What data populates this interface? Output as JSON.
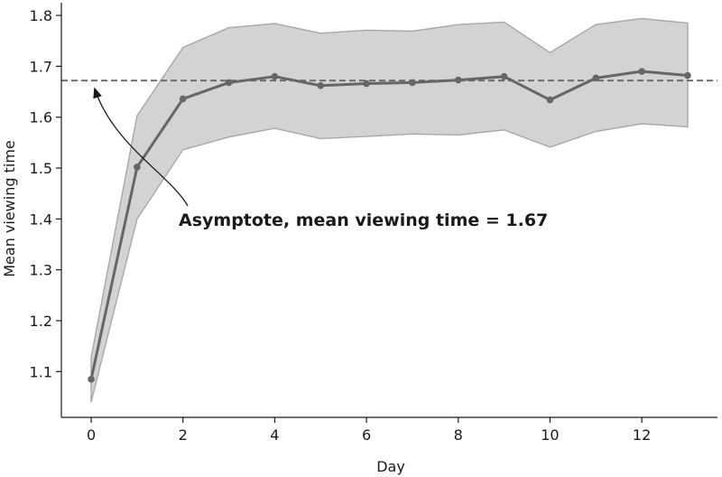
{
  "chart_data": {
    "type": "line",
    "xlabel": "Day",
    "ylabel": "Mean viewing time",
    "xlim": [
      -0.65,
      13.65
    ],
    "ylim": [
      1.01,
      1.825
    ],
    "xticks": [
      0,
      2,
      4,
      6,
      8,
      10,
      12
    ],
    "yticks": [
      1.1,
      1.2,
      1.3,
      1.4,
      1.5,
      1.6,
      1.7,
      1.8
    ],
    "grid": false,
    "series": [
      {
        "x": [
          0,
          1,
          2,
          3,
          4,
          5,
          6,
          7,
          8,
          9,
          10,
          11,
          12,
          13
        ],
        "values": [
          1.085,
          1.502,
          1.636,
          1.668,
          1.68,
          1.662,
          1.666,
          1.668,
          1.673,
          1.68,
          1.634,
          1.677,
          1.69,
          1.682
        ],
        "lower": [
          1.04,
          1.4,
          1.536,
          1.561,
          1.578,
          1.558,
          1.562,
          1.567,
          1.565,
          1.575,
          1.541,
          1.572,
          1.587,
          1.581
        ],
        "upper": [
          1.128,
          1.603,
          1.737,
          1.776,
          1.784,
          1.765,
          1.771,
          1.769,
          1.782,
          1.787,
          1.727,
          1.782,
          1.794,
          1.785
        ],
        "color": "#666666",
        "band_color": "#d3d3d3",
        "band_edge_color": "#a8a8a8"
      }
    ],
    "reference_line": {
      "y": 1.672,
      "style": "dashed",
      "color": "#666666"
    },
    "annotation": {
      "text": "Asymptote, mean viewing time = 1.67",
      "arrow_target": {
        "x": 0.0,
        "y": 1.67
      }
    }
  }
}
